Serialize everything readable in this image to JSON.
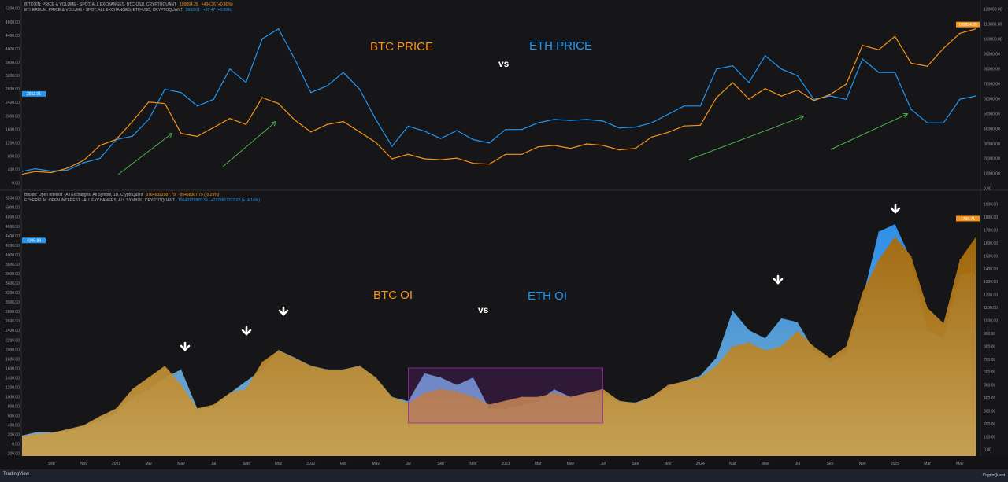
{
  "chart_data": [
    {
      "type": "line",
      "pane": "top",
      "legend": [
        {
          "label": "BITCOIN: PRICE & VOLUME - SPOT, ALL EXCHANGES, BTC-USD, CRYPTOQUANT",
          "value": "109894.26",
          "change": "+434.26 (+0.40%)"
        },
        {
          "label": "ETHEREUM: PRICE & VOLUME - SPOT, ALL EXCHANGES, ETH-USD, CRYPTOQUANT",
          "value": "2662.01",
          "change": "+97.47 (+3.80%)"
        }
      ],
      "annotations": {
        "btc_title": "BTC PRICE",
        "vs": "vs",
        "eth_title": "ETH PRICE"
      },
      "left_axis": {
        "series": "ETH",
        "ylim": [
          0,
          5200
        ],
        "ticks": [
          "5200.00",
          "4800.00",
          "4400.00",
          "4000.00",
          "3600.00",
          "3200.00",
          "2800.00",
          "2400.00",
          "2000.00",
          "1600.00",
          "1200.00",
          "800.00",
          "400.00",
          "0.00"
        ],
        "badge": "2662.01"
      },
      "right_axis": {
        "series": "BTC",
        "ylim": [
          0,
          120000
        ],
        "ticks": [
          "120000.00",
          "110000.00",
          "100000.00",
          "90000.00",
          "80000.00",
          "70000.00",
          "60000.00",
          "50000.00",
          "40000.00",
          "30000.00",
          "20000.00",
          "10000.00",
          "0.00"
        ],
        "badge": "109894.26"
      },
      "x_start": "2020-07",
      "x_step": "month",
      "series": [
        {
          "name": "BTC",
          "color": "#f7931a",
          "axis": "right",
          "values": [
            9200,
            11500,
            10800,
            13800,
            19000,
            29000,
            33000,
            45000,
            58000,
            57000,
            37000,
            35000,
            41000,
            47000,
            43000,
            61000,
            57000,
            46000,
            38000,
            43000,
            45000,
            38000,
            31000,
            20000,
            23000,
            20000,
            19400,
            20500,
            17000,
            16500,
            23000,
            23000,
            28000,
            29000,
            27000,
            30000,
            29000,
            26000,
            27000,
            34500,
            37700,
            42000,
            42500,
            61000,
            71000,
            60000,
            67000,
            62000,
            66000,
            59000,
            63000,
            70000,
            96000,
            93000,
            102000,
            84000,
            82000,
            94000,
            104000,
            107000
          ]
        },
        {
          "name": "ETH",
          "color": "#2196f3",
          "axis": "left",
          "values": [
            330,
            430,
            360,
            390,
            610,
            740,
            1300,
            1400,
            1900,
            2800,
            2700,
            2300,
            2500,
            3400,
            3000,
            4300,
            4600,
            3700,
            2700,
            2900,
            3300,
            2800,
            1900,
            1100,
            1700,
            1550,
            1330,
            1570,
            1300,
            1200,
            1600,
            1600,
            1800,
            1900,
            1870,
            1900,
            1850,
            1650,
            1670,
            1800,
            2050,
            2300,
            2300,
            3400,
            3500,
            3000,
            3800,
            3400,
            3200,
            2500,
            2600,
            2500,
            3700,
            3300,
            3300,
            2200,
            1800,
            1800,
            2500,
            2600
          ]
        }
      ]
    },
    {
      "type": "area",
      "pane": "bottom",
      "legend": [
        {
          "label": "Bitcoin: Open Interest · All Exchanges, All Symbol, 1D, CryptoQuant",
          "value": "37646392987.79",
          "change": "-95488367.75 (-0.25%)"
        },
        {
          "label": "ETHEREUM: OPEN INTEREST - ALL EXCHANGES, ALL SYMBOL, CRYPTOQUANT",
          "value": "19143179820.39",
          "change": "+2378817237.02 (+14.14%)"
        }
      ],
      "annotations": {
        "btc_title": "BTC OI",
        "vs": "vs",
        "eth_title": "ETH OI"
      },
      "highlight_box": {
        "from": "2022-07",
        "to": "2023-07",
        "color": "#9c27b0"
      },
      "down_arrows": [
        "2021-05",
        "2021-09",
        "2021-11",
        "2024-03",
        "2024-12"
      ],
      "left_axis": {
        "series": "ETH OI",
        "ylim": [
          -200,
          5200
        ],
        "ticks": [
          "5200.00",
          "5000.00",
          "4800.00",
          "4600.00",
          "4400.00",
          "4200.00",
          "4000.00",
          "3800.00",
          "3600.00",
          "3400.00",
          "3200.00",
          "3000.00",
          "2800.00",
          "2600.00",
          "2400.00",
          "2200.00",
          "2000.00",
          "1800.00",
          "1600.00",
          "1400.00",
          "1200.00",
          "1000.00",
          "800.00",
          "600.00",
          "400.00",
          "200.00",
          "0.00",
          "-200.00"
        ],
        "badge": "4305.88"
      },
      "right_axis": {
        "series": "BTC OI",
        "ylim": [
          0,
          2000
        ],
        "ticks": [
          "1900.00",
          "1800.00",
          "1700.00",
          "1600.00",
          "1500.00",
          "1400.00",
          "1300.00",
          "1200.00",
          "1100.00",
          "1000.00",
          "900.00",
          "800.00",
          "700.00",
          "600.00",
          "500.00",
          "400.00",
          "300.00",
          "200.00",
          "100.00",
          "0.00"
        ],
        "badge": "1790.71"
      },
      "x_start": "2020-07",
      "x_step": "month",
      "series": [
        {
          "name": "BTC OI",
          "color": "#c98a1c",
          "axis": "right",
          "values": [
            100,
            120,
            130,
            160,
            190,
            260,
            320,
            470,
            560,
            650,
            500,
            320,
            350,
            440,
            470,
            680,
            770,
            710,
            650,
            620,
            620,
            650,
            560,
            410,
            360,
            440,
            470,
            450,
            410,
            350,
            380,
            410,
            410,
            440,
            410,
            440,
            470,
            380,
            360,
            410,
            500,
            530,
            560,
            650,
            800,
            830,
            770,
            800,
            920,
            800,
            710,
            800,
            1220,
            1470,
            1650,
            1500,
            1100,
            980,
            1470,
            1650
          ]
        },
        {
          "name": "ETH OI",
          "color": "#2d8ae0",
          "axis": "left",
          "values": [
            170,
            250,
            250,
            280,
            380,
            500,
            660,
            1000,
            1160,
            1410,
            1580,
            750,
            780,
            1080,
            1330,
            1580,
            1990,
            1830,
            1660,
            1580,
            1580,
            1660,
            1410,
            1000,
            910,
            1500,
            1410,
            1250,
            1410,
            750,
            750,
            830,
            910,
            1160,
            1000,
            1080,
            1080,
            910,
            880,
            1000,
            1210,
            1330,
            1450,
            1830,
            2820,
            2410,
            2240,
            2660,
            2580,
            1990,
            1740,
            1910,
            3070,
            4490,
            4650,
            3900,
            2410,
            2240,
            3570,
            3650
          ]
        }
      ]
    }
  ],
  "x_axis": {
    "ticks": [
      {
        "label": "Sep",
        "m": 2
      },
      {
        "label": "Nov",
        "m": 4
      },
      {
        "label": "2021",
        "m": 6
      },
      {
        "label": "Mar",
        "m": 8
      },
      {
        "label": "May",
        "m": 10
      },
      {
        "label": "Jul",
        "m": 12
      },
      {
        "label": "Sep",
        "m": 14
      },
      {
        "label": "Nov",
        "m": 16
      },
      {
        "label": "2022",
        "m": 18
      },
      {
        "label": "Mar",
        "m": 20
      },
      {
        "label": "May",
        "m": 22
      },
      {
        "label": "Jul",
        "m": 24
      },
      {
        "label": "Sep",
        "m": 26
      },
      {
        "label": "Nov",
        "m": 28
      },
      {
        "label": "2023",
        "m": 30
      },
      {
        "label": "Mar",
        "m": 32
      },
      {
        "label": "May",
        "m": 34
      },
      {
        "label": "Jul",
        "m": 36
      },
      {
        "label": "Sep",
        "m": 38
      },
      {
        "label": "Nov",
        "m": 40
      },
      {
        "label": "2024",
        "m": 42
      },
      {
        "label": "Mar",
        "m": 44
      },
      {
        "label": "May",
        "m": 46
      },
      {
        "label": "Jul",
        "m": 48
      },
      {
        "label": "Sep",
        "m": 50
      },
      {
        "label": "Nov",
        "m": 52
      },
      {
        "label": "2025",
        "m": 54
      },
      {
        "label": "Mar",
        "m": 56
      },
      {
        "label": "May",
        "m": 58
      }
    ]
  },
  "footer": {
    "left_brand": "TradingView",
    "right_brand": "CryptoQuant"
  },
  "colors": {
    "background": "#161618",
    "btc": "#f7931a",
    "eth": "#2196f3",
    "arrow_green": "#4caf50"
  }
}
